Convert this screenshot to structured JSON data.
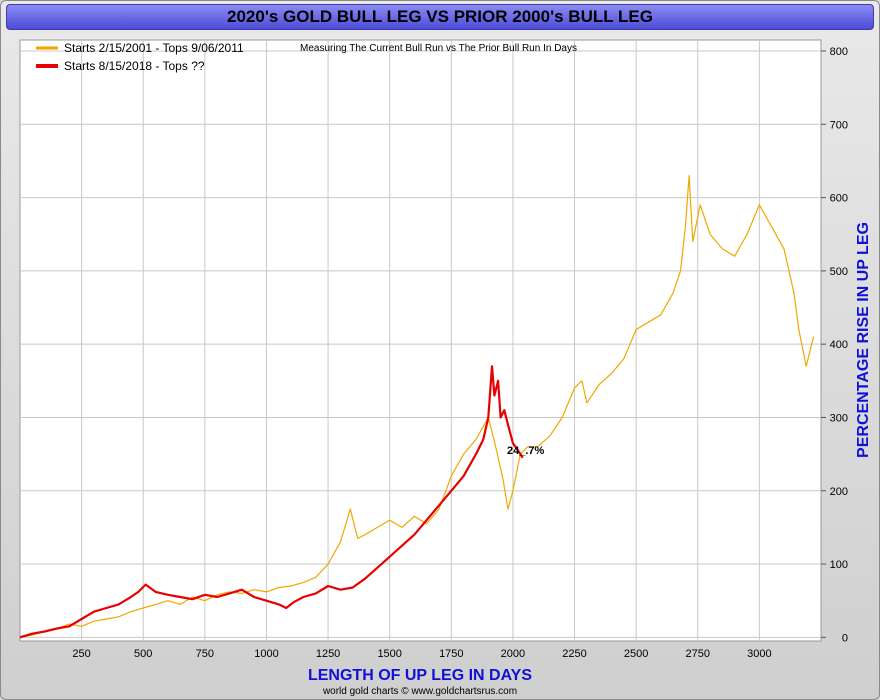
{
  "chart_data": {
    "type": "line",
    "title": "2020's GOLD BULL LEG VS PRIOR 2000's BULL LEG",
    "subtitle": "Measuring The Current Bull Run vs The Prior Bull Run In Days",
    "xlabel": "LENGTH OF UP LEG IN DAYS",
    "ylabel": "PERCENTAGE RISE IN UP LEG",
    "xlim": [
      0,
      3250
    ],
    "ylim": [
      -5,
      815
    ],
    "x_ticks": [
      250,
      500,
      750,
      1000,
      1250,
      1500,
      1750,
      2000,
      2250,
      2500,
      2750,
      3000
    ],
    "y_ticks": [
      0,
      100,
      200,
      300,
      400,
      500,
      600,
      700,
      800
    ],
    "y_axis_side": "right",
    "grid": true,
    "legend_position": "top-left",
    "annotation": "24_.7%",
    "colors": {
      "series1": "#f0a800",
      "series2": "#e80000",
      "axis_title": "#1010d8",
      "title_bar": "#6a6ae6"
    },
    "series": [
      {
        "name": "Starts 2/15/2001 - Tops 9/06/2011",
        "x": [
          0,
          50,
          100,
          150,
          200,
          250,
          300,
          350,
          400,
          450,
          500,
          550,
          600,
          650,
          700,
          750,
          800,
          850,
          900,
          950,
          1000,
          1050,
          1100,
          1150,
          1200,
          1250,
          1300,
          1340,
          1370,
          1400,
          1450,
          1500,
          1550,
          1600,
          1650,
          1700,
          1750,
          1800,
          1850,
          1900,
          1930,
          1960,
          1980,
          2000,
          2030,
          2060,
          2100,
          2150,
          2200,
          2250,
          2280,
          2300,
          2350,
          2400,
          2450,
          2500,
          2550,
          2600,
          2650,
          2680,
          2700,
          2715,
          2730,
          2760,
          2800,
          2850,
          2900,
          2950,
          3000,
          3050,
          3100,
          3120,
          3140,
          3160,
          3190,
          3220
        ],
        "values": [
          0,
          3,
          8,
          12,
          18,
          15,
          22,
          25,
          28,
          35,
          40,
          45,
          50,
          45,
          55,
          50,
          58,
          62,
          60,
          65,
          62,
          68,
          70,
          75,
          82,
          100,
          130,
          175,
          135,
          140,
          150,
          160,
          150,
          165,
          155,
          175,
          220,
          250,
          270,
          300,
          260,
          215,
          175,
          200,
          250,
          260,
          260,
          275,
          300,
          340,
          350,
          320,
          345,
          360,
          380,
          420,
          430,
          440,
          470,
          500,
          560,
          630,
          540,
          590,
          550,
          530,
          520,
          550,
          590,
          560,
          530,
          500,
          470,
          420,
          370,
          410
        ]
      },
      {
        "name": "Starts 8/15/2018 - Tops ??",
        "x": [
          0,
          50,
          100,
          150,
          200,
          250,
          300,
          350,
          400,
          450,
          480,
          510,
          550,
          600,
          650,
          700,
          750,
          800,
          850,
          900,
          950,
          1000,
          1050,
          1080,
          1110,
          1150,
          1200,
          1250,
          1300,
          1350,
          1400,
          1450,
          1500,
          1550,
          1600,
          1650,
          1700,
          1750,
          1800,
          1850,
          1880,
          1900,
          1915,
          1925,
          1940,
          1950,
          1965,
          1980,
          2000,
          2020,
          2040
        ],
        "values": [
          0,
          5,
          8,
          12,
          15,
          25,
          35,
          40,
          45,
          55,
          62,
          72,
          62,
          58,
          55,
          52,
          58,
          55,
          60,
          65,
          55,
          50,
          45,
          40,
          48,
          55,
          60,
          70,
          65,
          68,
          80,
          95,
          110,
          125,
          140,
          160,
          180,
          200,
          220,
          250,
          270,
          300,
          370,
          330,
          350,
          300,
          310,
          290,
          265,
          255,
          245
        ]
      }
    ]
  },
  "footer": "world gold charts © www.goldchartsrus.com"
}
